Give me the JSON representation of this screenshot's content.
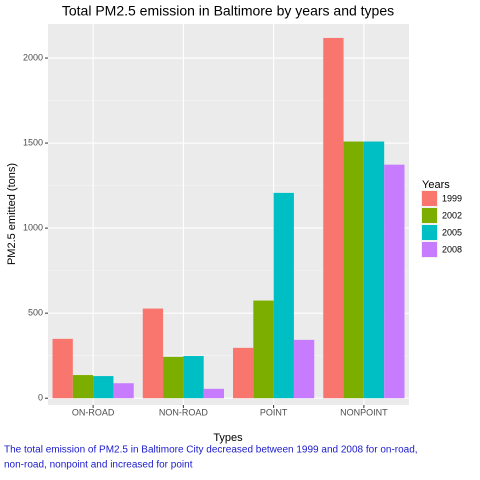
{
  "chart_data": {
    "type": "bar",
    "title": "Total PM2.5 emission in Baltimore by years and types",
    "x_label": "Types",
    "y_label": "PM2.5 emitted (tons)",
    "legend_title": "Years",
    "caption": [
      "The total emission of PM2.5 in Baltimore City decreased between 1999 and 2008 for on-road,",
      "non-road, nonpoint and increased for point"
    ],
    "categories": [
      "ON-ROAD",
      "NON-ROAD",
      "POINT",
      "NONPOINT"
    ],
    "series": [
      {
        "name": "1999",
        "color": "#f8766d",
        "values": [
          349,
          527,
          296,
          2118
        ]
      },
      {
        "name": "2002",
        "color": "#7cae00",
        "values": [
          136,
          243,
          574,
          1509
        ]
      },
      {
        "name": "2005",
        "color": "#00bfc4",
        "values": [
          130,
          248,
          1207,
          1509
        ]
      },
      {
        "name": "2008",
        "color": "#c77cff",
        "values": [
          88,
          55,
          343,
          1373
        ]
      }
    ],
    "ylim": [
      -40,
      2200
    ],
    "yticks": [
      0,
      500,
      1000,
      1500,
      2000
    ],
    "grid": true,
    "legend": "right"
  }
}
